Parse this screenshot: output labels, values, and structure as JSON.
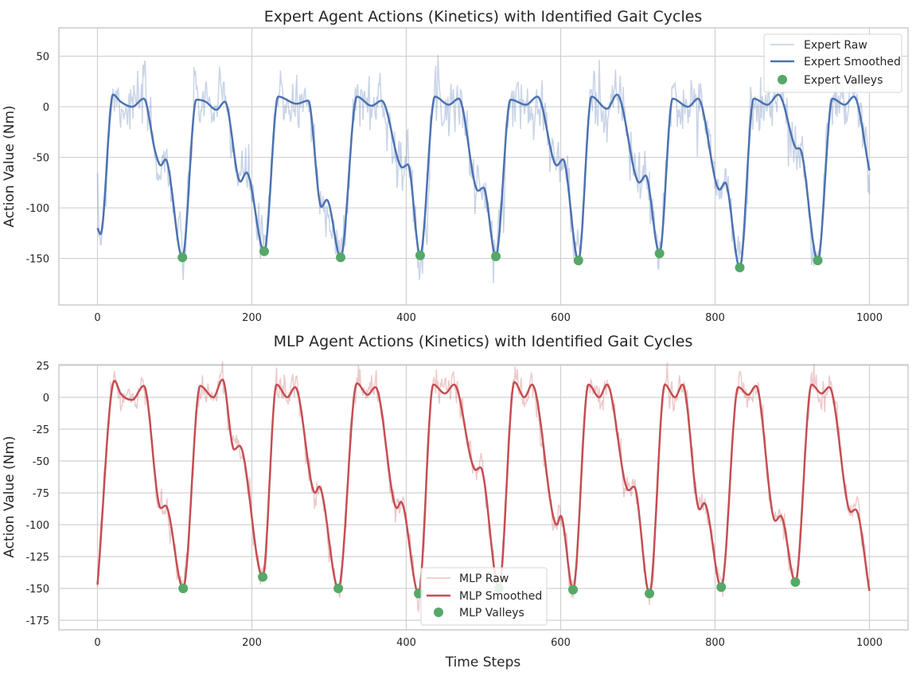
{
  "chart_data": [
    {
      "type": "line",
      "title": "Expert Agent Actions (Kinetics) with Identified Gait Cycles",
      "xlabel": "",
      "ylabel": "Action Value (Nm)",
      "xlim": [
        -50,
        1050
      ],
      "ylim": [
        -196,
        78
      ],
      "xticks": [
        0,
        200,
        400,
        600,
        800,
        1000
      ],
      "yticks": [
        50,
        0,
        -50,
        -100,
        -150
      ],
      "grid": true,
      "legend": "top-right",
      "colors": {
        "raw": "#4c72b0",
        "smoothed": "#4c72b0",
        "valleys": "#55a868"
      },
      "legend_entries": [
        "Expert Raw",
        "Expert Smoothed",
        "Expert Valleys"
      ],
      "smoothed_keypoints": [
        [
          0,
          -120
        ],
        [
          4,
          -126
        ],
        [
          20,
          12
        ],
        [
          30,
          5
        ],
        [
          45,
          0
        ],
        [
          60,
          8
        ],
        [
          75,
          -45
        ],
        [
          82,
          -58
        ],
        [
          88,
          -52
        ],
        [
          110,
          -149
        ],
        [
          128,
          7
        ],
        [
          140,
          5
        ],
        [
          154,
          -3
        ],
        [
          165,
          5
        ],
        [
          185,
          -74
        ],
        [
          193,
          -65
        ],
        [
          216,
          -143
        ],
        [
          234,
          10
        ],
        [
          258,
          3
        ],
        [
          273,
          6
        ],
        [
          290,
          -99
        ],
        [
          297,
          -92
        ],
        [
          315,
          -149
        ],
        [
          336,
          10
        ],
        [
          355,
          1
        ],
        [
          368,
          6
        ],
        [
          395,
          -60
        ],
        [
          402,
          -57
        ],
        [
          418,
          -147
        ],
        [
          437,
          10
        ],
        [
          455,
          2
        ],
        [
          468,
          8
        ],
        [
          493,
          -83
        ],
        [
          500,
          -80
        ],
        [
          516,
          -148
        ],
        [
          535,
          7
        ],
        [
          555,
          2
        ],
        [
          570,
          10
        ],
        [
          595,
          -58
        ],
        [
          603,
          -52
        ],
        [
          623,
          -152
        ],
        [
          640,
          10
        ],
        [
          660,
          -2
        ],
        [
          673,
          12
        ],
        [
          702,
          -75
        ],
        [
          710,
          -68
        ],
        [
          728,
          -145
        ],
        [
          745,
          8
        ],
        [
          765,
          0
        ],
        [
          778,
          8
        ],
        [
          806,
          -82
        ],
        [
          813,
          -75
        ],
        [
          832,
          -159
        ],
        [
          850,
          8
        ],
        [
          868,
          2
        ],
        [
          882,
          12
        ],
        [
          904,
          -40
        ],
        [
          912,
          -45
        ],
        [
          933,
          -152
        ],
        [
          952,
          8
        ],
        [
          968,
          2
        ],
        [
          980,
          10
        ],
        [
          1000,
          -63
        ]
      ],
      "valleys": [
        [
          110,
          -149
        ],
        [
          216,
          -143
        ],
        [
          315,
          -149
        ],
        [
          418,
          -147
        ],
        [
          516,
          -148
        ],
        [
          623,
          -152
        ],
        [
          728,
          -145
        ],
        [
          832,
          -159
        ],
        [
          933,
          -152
        ]
      ]
    },
    {
      "type": "line",
      "title": "MLP Agent Actions (Kinetics) with Identified Gait Cycles",
      "xlabel": "Time Steps",
      "ylabel": "Action Value (Nm)",
      "xlim": [
        -50,
        1050
      ],
      "ylim": [
        -182.5,
        25.6
      ],
      "xticks": [
        0,
        200,
        400,
        600,
        800,
        1000
      ],
      "yticks": [
        25,
        0,
        -25,
        -50,
        -75,
        -100,
        -125,
        -150,
        -175
      ],
      "grid": true,
      "legend": "bottom-center",
      "colors": {
        "raw": "#c44e52",
        "smoothed": "#c44e52",
        "valleys": "#55a868"
      },
      "legend_entries": [
        "MLP Raw",
        "MLP Smoothed",
        "MLP Valleys"
      ],
      "smoothed_keypoints": [
        [
          0,
          -147
        ],
        [
          22,
          13
        ],
        [
          30,
          3
        ],
        [
          45,
          -2
        ],
        [
          60,
          9
        ],
        [
          82,
          -87
        ],
        [
          88,
          -85
        ],
        [
          111,
          -150
        ],
        [
          133,
          9
        ],
        [
          150,
          0
        ],
        [
          162,
          14
        ],
        [
          177,
          -41
        ],
        [
          184,
          -38
        ],
        [
          214,
          -141
        ],
        [
          232,
          10
        ],
        [
          246,
          0
        ],
        [
          256,
          8
        ],
        [
          282,
          -75
        ],
        [
          287,
          -70
        ],
        [
          312,
          -150
        ],
        [
          336,
          11
        ],
        [
          350,
          2
        ],
        [
          360,
          8
        ],
        [
          388,
          -87
        ],
        [
          393,
          -82
        ],
        [
          416,
          -154
        ],
        [
          435,
          10
        ],
        [
          450,
          3
        ],
        [
          462,
          10
        ],
        [
          490,
          -57
        ],
        [
          496,
          -55
        ],
        [
          520,
          -150
        ],
        [
          540,
          12
        ],
        [
          553,
          0
        ],
        [
          563,
          10
        ],
        [
          595,
          -100
        ],
        [
          600,
          -93
        ],
        [
          616,
          -151
        ],
        [
          636,
          10
        ],
        [
          650,
          0
        ],
        [
          660,
          10
        ],
        [
          688,
          -73
        ],
        [
          695,
          -70
        ],
        [
          715,
          -154
        ],
        [
          735,
          10
        ],
        [
          748,
          0
        ],
        [
          758,
          10
        ],
        [
          780,
          -88
        ],
        [
          786,
          -83
        ],
        [
          808,
          -149
        ],
        [
          830,
          8
        ],
        [
          843,
          2
        ],
        [
          853,
          9
        ],
        [
          878,
          -97
        ],
        [
          885,
          -93
        ],
        [
          904,
          -145
        ],
        [
          925,
          10
        ],
        [
          938,
          3
        ],
        [
          948,
          8
        ],
        [
          976,
          -90
        ],
        [
          982,
          -88
        ],
        [
          1000,
          -152
        ]
      ],
      "valleys": [
        [
          111,
          -150
        ],
        [
          214,
          -141
        ],
        [
          312,
          -150
        ],
        [
          416,
          -154
        ],
        [
          520,
          -150
        ],
        [
          616,
          -151
        ],
        [
          715,
          -154
        ],
        [
          808,
          -149
        ],
        [
          904,
          -145
        ]
      ]
    }
  ]
}
